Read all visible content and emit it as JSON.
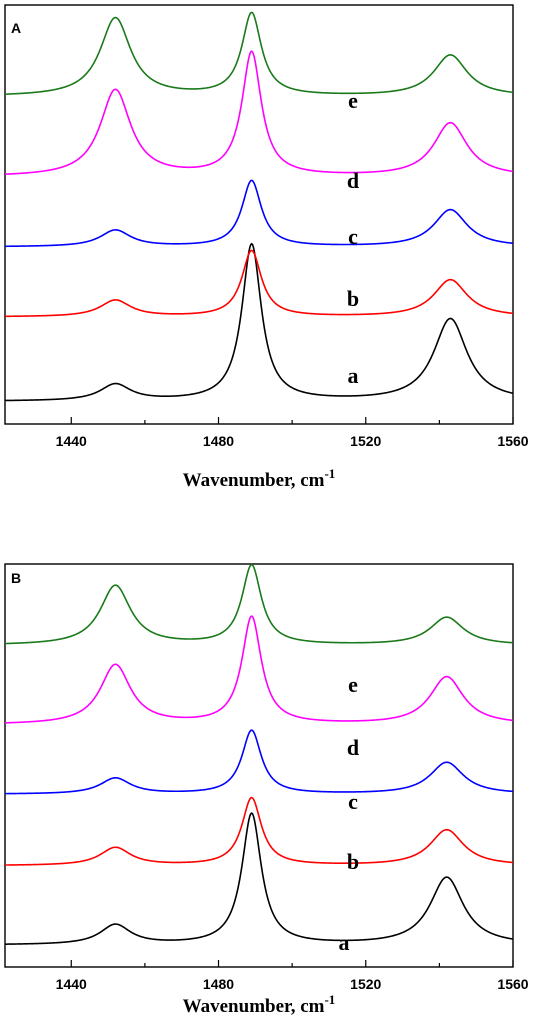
{
  "chart_data": [
    {
      "panel_label": "A",
      "type": "line",
      "xlabel_main": "Wavenumber, cm",
      "xlabel_sup": "-1",
      "xlim": [
        1422,
        1560
      ],
      "xticks": [
        1440,
        1480,
        1520,
        1560
      ],
      "yticks": [],
      "ylim": [
        0,
        1.0
      ],
      "grid": false,
      "peaks": [
        1452,
        1489,
        1543
      ],
      "series": [
        {
          "label": "a",
          "color": "#000000",
          "baseline": 0.045,
          "heights": [
            0.04,
            0.38,
            0.2
          ],
          "widths": [
            5.0,
            3.2,
            5.5
          ]
        },
        {
          "label": "b",
          "color": "#ff0000",
          "baseline": 0.25,
          "heights": [
            0.04,
            0.16,
            0.09
          ],
          "widths": [
            5.0,
            3.2,
            5.5
          ]
        },
        {
          "label": "c",
          "color": "#0000ff",
          "baseline": 0.42,
          "heights": [
            0.04,
            0.16,
            0.09
          ],
          "widths": [
            5.0,
            3.2,
            5.5
          ]
        },
        {
          "label": "d",
          "color": "#ff00ff",
          "baseline": 0.59,
          "heights": [
            0.21,
            0.3,
            0.13
          ],
          "widths": [
            5.0,
            3.2,
            5.5
          ]
        },
        {
          "label": "e",
          "color": "#1a7a1a",
          "baseline": 0.785,
          "heights": [
            0.19,
            0.2,
            0.1
          ],
          "widths": [
            5.0,
            3.2,
            5.5
          ]
        }
      ]
    },
    {
      "panel_label": "B",
      "type": "line",
      "xlabel_main": "Wavenumber, cm",
      "xlabel_sup": "-1",
      "xlim": [
        1422,
        1560
      ],
      "xticks": [
        1440,
        1480,
        1520,
        1560
      ],
      "yticks": [],
      "ylim": [
        0,
        1.0
      ],
      "grid": false,
      "peaks": [
        1452,
        1489,
        1542
      ],
      "series": [
        {
          "label": "a",
          "color": "#000000",
          "baseline": 0.045,
          "heights": [
            0.05,
            0.33,
            0.17
          ],
          "widths": [
            5.0,
            3.2,
            5.5
          ]
        },
        {
          "label": "b",
          "color": "#ff0000",
          "baseline": 0.245,
          "heights": [
            0.045,
            0.17,
            0.09
          ],
          "widths": [
            5.0,
            3.2,
            5.5
          ]
        },
        {
          "label": "c",
          "color": "#0000ff",
          "baseline": 0.425,
          "heights": [
            0.04,
            0.16,
            0.08
          ],
          "widths": [
            5.0,
            3.2,
            5.5
          ]
        },
        {
          "label": "d",
          "color": "#ff00ff",
          "baseline": 0.6,
          "heights": [
            0.15,
            0.27,
            0.12
          ],
          "widths": [
            5.0,
            3.2,
            5.5
          ]
        },
        {
          "label": "e",
          "color": "#1a7a1a",
          "baseline": 0.8,
          "heights": [
            0.15,
            0.2,
            0.07
          ],
          "widths": [
            5.0,
            3.2,
            5.5
          ]
        }
      ]
    }
  ]
}
